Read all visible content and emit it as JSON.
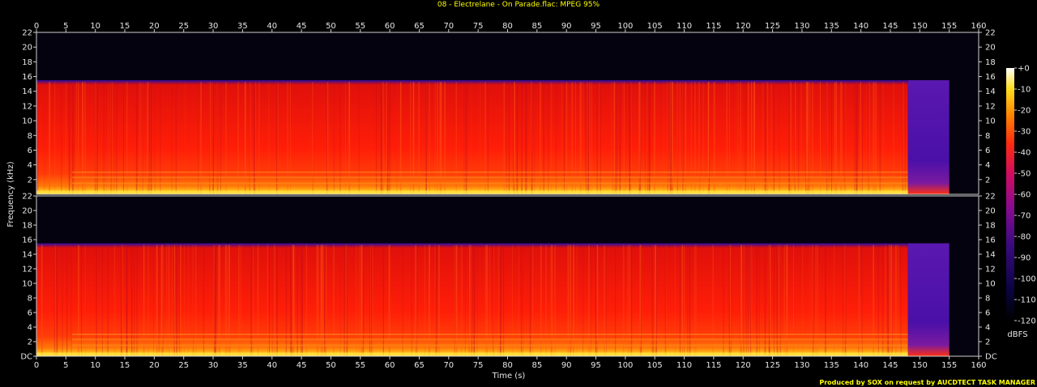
{
  "chart_data": {
    "type": "heatmap",
    "title": "08 - Electrelane - On Parade.flac: MPEG 95%",
    "xlabel": "Time (s)",
    "ylabel": "Frequency (kHz)",
    "xlim": [
      0,
      160
    ],
    "ylim": [
      0,
      22
    ],
    "x_ticks": [
      "0",
      "5",
      "10",
      "15",
      "20",
      "25",
      "30",
      "35",
      "40",
      "45",
      "50",
      "55",
      "60",
      "65",
      "70",
      "75",
      "80",
      "85",
      "90",
      "95",
      "100",
      "105",
      "110",
      "115",
      "120",
      "125",
      "130",
      "135",
      "140",
      "145",
      "150",
      "155",
      "160"
    ],
    "y_ticks_upper": [
      "22",
      "20",
      "18",
      "16",
      "14",
      "12",
      "10",
      "8",
      "6",
      "4",
      "2"
    ],
    "y_ticks_lower": [
      "22",
      "20",
      "18",
      "16",
      "14",
      "12",
      "10",
      "8",
      "6",
      "4",
      "2",
      "DC"
    ],
    "channels": [
      {
        "name": "",
        "cutoff_khz": 15.5,
        "content_end_s": 148,
        "tail_end_s": 155
      },
      {
        "name": "",
        "cutoff_khz": 15.5,
        "content_end_s": 148,
        "tail_end_s": 155
      }
    ],
    "colorbar": {
      "label": "dBFS",
      "ticks": [
        "+0",
        "-10",
        "-20",
        "-30",
        "-40",
        "-50",
        "-60",
        "-70",
        "-80",
        "-90",
        "-100",
        "-110",
        "-120"
      ],
      "range": [
        -120,
        0
      ]
    },
    "credit": "Produced by SOX on request by AUCDTECT TASK MANAGER",
    "colors": {
      "background": "#000000",
      "axis": "#d0d0d0",
      "text": "#e6e6e6",
      "title": "#ffff00",
      "hot": "#ff2a10",
      "cold": "#100030"
    }
  }
}
